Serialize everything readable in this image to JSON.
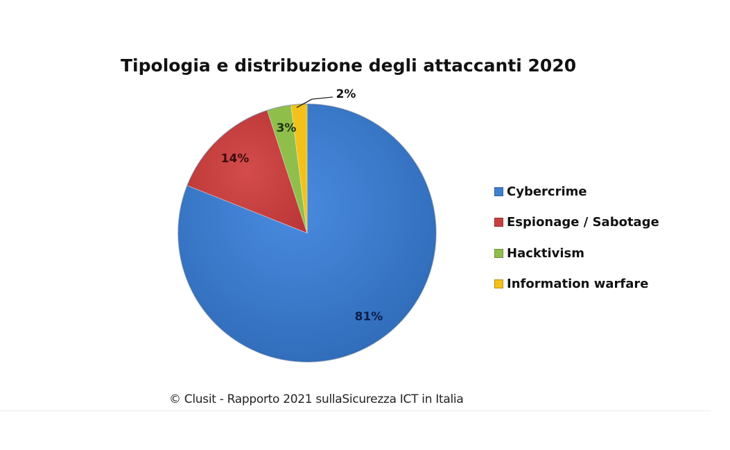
{
  "chart_data": {
    "type": "pie",
    "title": "Tipologia  e distribuzione degli attaccanti 2020",
    "categories": [
      "Cybercrime",
      "Espionage / Sabotage",
      "Hacktivism",
      "Information warfare"
    ],
    "values": [
      81,
      14,
      3,
      2
    ],
    "labels": [
      "81%",
      "14%",
      "3%",
      "2%"
    ],
    "colors": [
      "#3f7fcf",
      "#c94040",
      "#8fbf4a",
      "#f2c21b"
    ],
    "legend_position": "right",
    "start_angle": "12 o'clock, clockwise: Cybercrime first"
  },
  "header": {
    "title": "Tipologia  e distribuzione degli attaccanti 2020"
  },
  "legend": {
    "items": [
      {
        "label": "Cybercrime",
        "color": "#3f7fcf"
      },
      {
        "label": "Espionage / Sabotage",
        "color": "#c94040"
      },
      {
        "label": "Hacktivism",
        "color": "#8fbf4a"
      },
      {
        "label": "Information warfare",
        "color": "#f2c21b"
      }
    ]
  },
  "footer": {
    "source": "© Clusit - Rapporto 2021 sullaSicurezza ICT in Italia"
  }
}
